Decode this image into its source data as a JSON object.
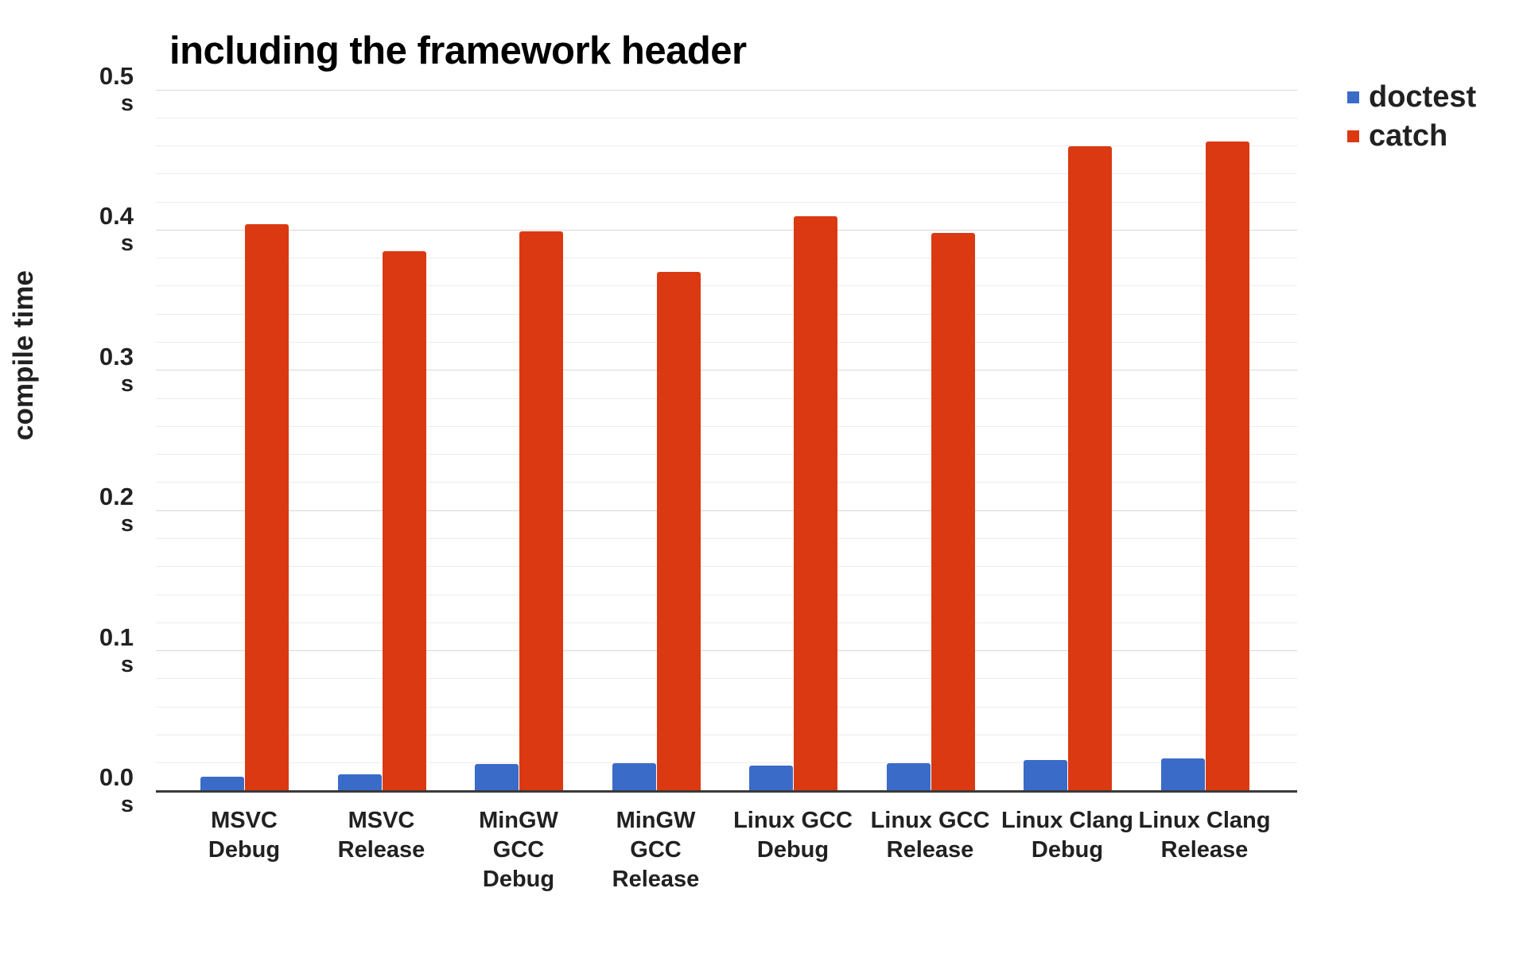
{
  "chart_data": {
    "type": "bar",
    "title": "including the framework header",
    "ylabel": "compile time",
    "unit": "s",
    "ylim": [
      0,
      0.5
    ],
    "y_major_tick_step": 0.1,
    "y_minor_grid_step": 0.02,
    "grid": true,
    "legend_position": "right",
    "categories": [
      [
        "MSVC",
        "Debug"
      ],
      [
        "MSVC",
        "Release"
      ],
      [
        "MinGW GCC",
        "Debug"
      ],
      [
        "MinGW GCC",
        "Release"
      ],
      [
        "Linux GCC",
        "Debug"
      ],
      [
        "Linux GCC",
        "Release"
      ],
      [
        "Linux Clang",
        "Debug"
      ],
      [
        "Linux Clang",
        "Release"
      ]
    ],
    "series": [
      {
        "name": "doctest",
        "color": "#3b6bc8",
        "values": [
          0.01,
          0.012,
          0.019,
          0.02,
          0.018,
          0.02,
          0.022,
          0.023
        ]
      },
      {
        "name": "catch",
        "color": "#db3912",
        "values": [
          0.404,
          0.385,
          0.399,
          0.37,
          0.41,
          0.398,
          0.46,
          0.463
        ]
      }
    ]
  },
  "colors": {
    "doctest": "#3b6bc8",
    "catch": "#db3912",
    "text": "#212121",
    "grid_minor": "#ececec",
    "grid_major": "#d8d8d8",
    "axis_line": "#3a3a3a",
    "background": "#ffffff"
  }
}
